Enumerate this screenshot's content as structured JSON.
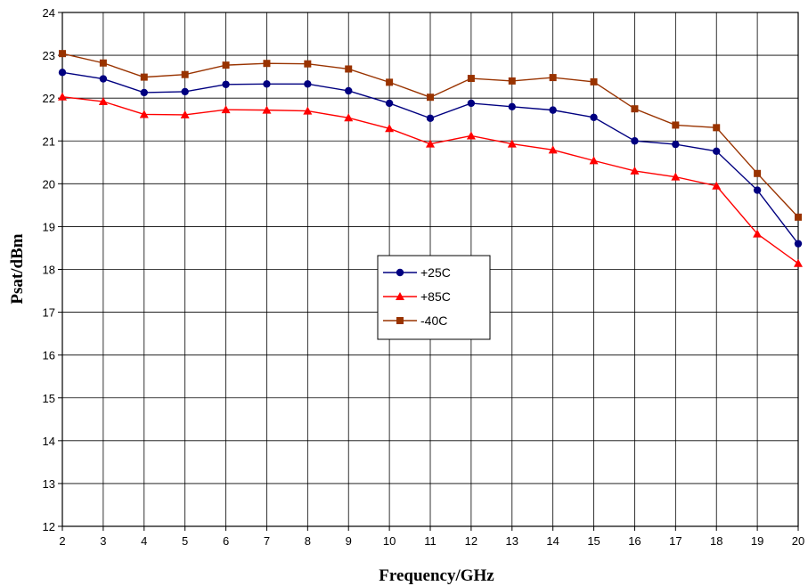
{
  "chart_data": {
    "type": "line",
    "title": "",
    "xlabel": "Frequency/GHz",
    "ylabel": "Psat/dBm",
    "x": [
      2,
      3,
      4,
      5,
      6,
      7,
      8,
      9,
      10,
      11,
      12,
      13,
      14,
      15,
      16,
      17,
      18,
      19,
      20
    ],
    "xlim": [
      2,
      20
    ],
    "ylim": [
      12,
      24
    ],
    "xticks": [
      "2",
      "3",
      "4",
      "5",
      "6",
      "7",
      "8",
      "9",
      "10",
      "11",
      "12",
      "13",
      "14",
      "15",
      "16",
      "17",
      "18",
      "19",
      "20"
    ],
    "yticks": [
      "12",
      "13",
      "14",
      "15",
      "16",
      "17",
      "18",
      "19",
      "20",
      "21",
      "22",
      "23",
      "24"
    ],
    "grid": true,
    "legend_position": "center",
    "series": [
      {
        "name": "+25C",
        "color": "#000080",
        "marker": "circle",
        "values": [
          22.6,
          22.45,
          22.13,
          22.15,
          22.32,
          22.33,
          22.33,
          22.17,
          21.88,
          21.53,
          21.88,
          21.8,
          21.72,
          21.55,
          21.0,
          20.92,
          20.76,
          19.85,
          18.6
        ]
      },
      {
        "name": "+85C",
        "color": "#ff0000",
        "marker": "triangle",
        "values": [
          22.03,
          21.92,
          21.62,
          21.61,
          21.73,
          21.72,
          21.7,
          21.54,
          21.29,
          20.93,
          21.12,
          20.93,
          20.79,
          20.54,
          20.3,
          20.16,
          19.95,
          18.83,
          18.14
        ]
      },
      {
        "name": "-40C",
        "color": "#993300",
        "marker": "square",
        "values": [
          23.04,
          22.82,
          22.49,
          22.55,
          22.77,
          22.81,
          22.8,
          22.68,
          22.37,
          22.02,
          22.46,
          22.4,
          22.48,
          22.38,
          21.75,
          21.37,
          21.31,
          20.24,
          19.22
        ]
      }
    ]
  }
}
